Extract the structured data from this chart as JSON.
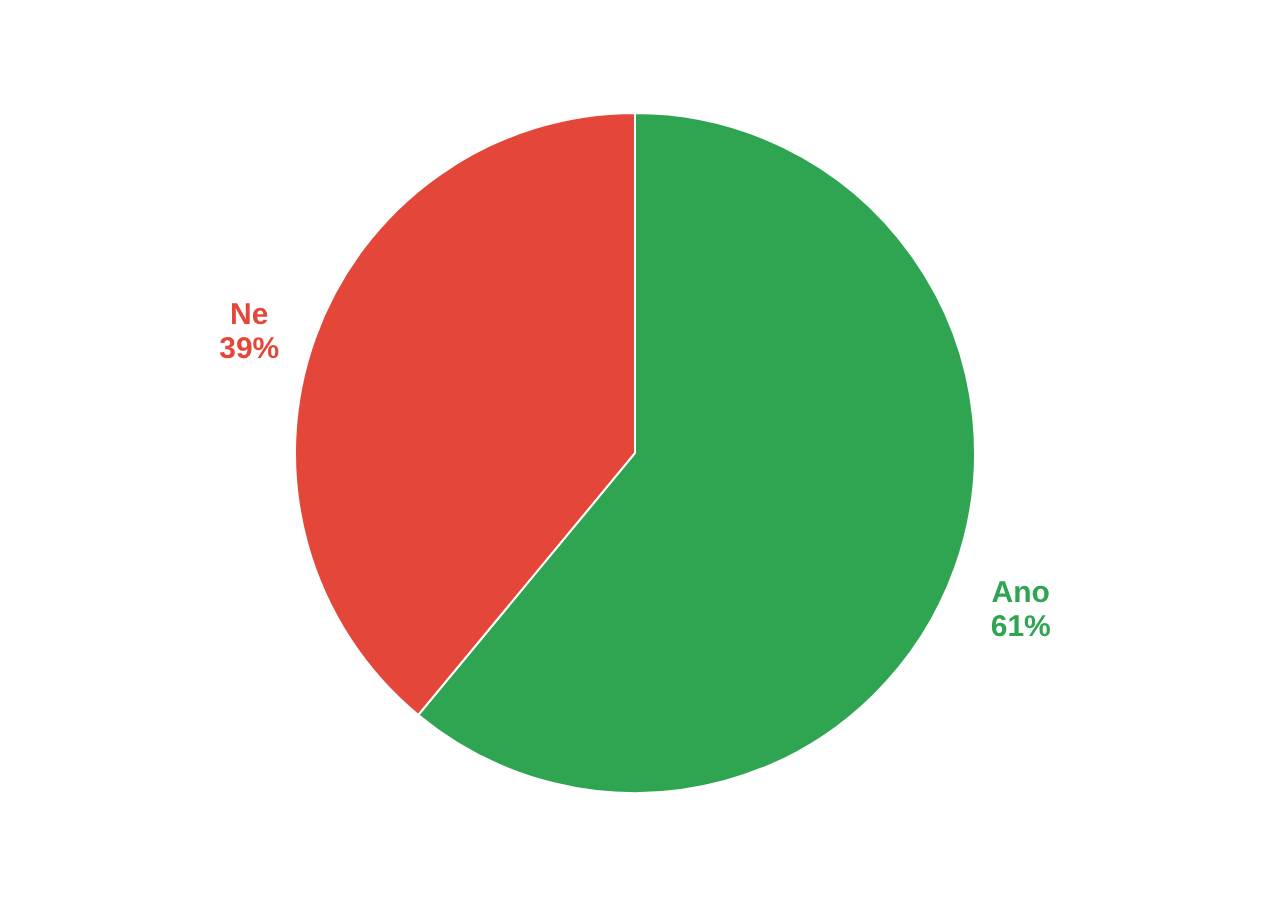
{
  "chart_data": {
    "type": "pie",
    "categories": [
      "Ano",
      "Ne"
    ],
    "values": [
      61,
      39
    ],
    "value_labels": [
      "61%",
      "39%"
    ],
    "colors": [
      "#2fa552",
      "#e4473a"
    ]
  }
}
